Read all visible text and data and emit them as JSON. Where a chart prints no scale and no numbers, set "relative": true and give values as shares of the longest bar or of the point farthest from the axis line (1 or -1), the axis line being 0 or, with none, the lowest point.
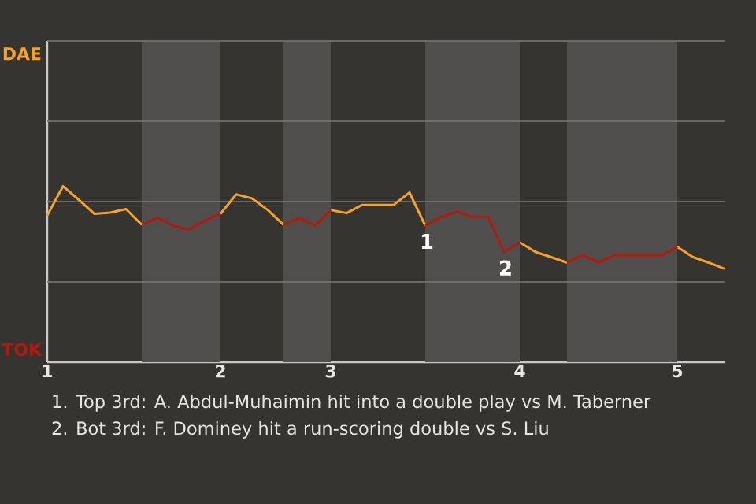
{
  "chart_data": {
    "type": "line",
    "relative": true,
    "categories": [
      "1",
      null,
      null,
      null,
      null,
      null,
      null,
      null,
      null,
      null,
      null,
      "2",
      null,
      null,
      null,
      null,
      null,
      null,
      "3",
      null,
      null,
      null,
      null,
      null,
      null,
      null,
      null,
      null,
      null,
      null,
      "4",
      null,
      null,
      null,
      null,
      null,
      null,
      null,
      null,
      null,
      "5",
      null,
      null,
      null
    ],
    "series": [
      {
        "color": "#f5a12a",
        "values": [
          0.834,
          1,
          0.923,
          0.843,
          0.85,
          0.87,
          0.781,
          null,
          null,
          null,
          null,
          0.843,
          0.954,
          0.931,
          0.865,
          0.781,
          null,
          null,
          0.865,
          0.847,
          0.894,
          0.894,
          0.894,
          0.964,
          0.776,
          null,
          null,
          null,
          null,
          null,
          0.681,
          0.626,
          0.597,
          0.566,
          null,
          null,
          null,
          null,
          null,
          null,
          0.655,
          0.597,
          0.566,
          0.531
        ]
      },
      {
        "color": "#b5180c",
        "values": [
          null,
          null,
          null,
          null,
          null,
          null,
          0.781,
          0.821,
          0.776,
          0.754,
          0.805,
          0.843,
          null,
          null,
          null,
          0.781,
          0.821,
          0.776,
          0.865,
          null,
          null,
          null,
          null,
          null,
          0.776,
          0.825,
          0.856,
          0.825,
          0.825,
          0.626,
          0.681,
          null,
          null,
          0.566,
          0.608,
          0.566,
          0.608,
          0.608,
          0.608,
          0.608,
          0.655,
          null,
          null,
          null
        ]
      }
    ],
    "annotations": [
      "DAE",
      "TOK",
      {
        "text": "1",
        "y": 0.776
      },
      {
        "text": "2",
        "y": 0.626
      },
      "1. Top 3rd: A. Abdul-Muhaimin hit into a double play vs M. Taberner",
      "2. Bot 3rd: F. Dominey hit a run-scoring double vs S. Liu"
    ],
    "ref_lines": [
      {
        "axis": "y",
        "value": 0.456,
        "color": "#7c7b79"
      },
      {
        "axis": "y",
        "value": 0.912,
        "color": "#7c7b79"
      },
      {
        "axis": "y",
        "value": 1.369,
        "color": "#7c7b79"
      }
    ],
    "legend": false,
    "marker": "none",
    "line_style": "solid"
  }
}
